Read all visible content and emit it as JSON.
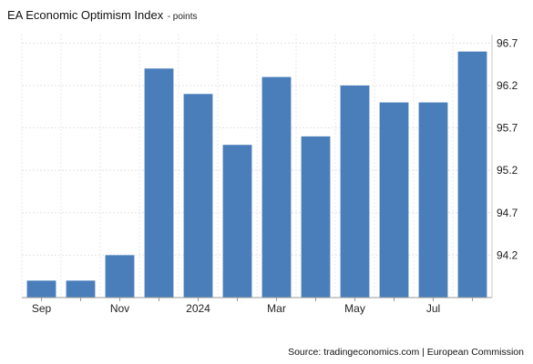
{
  "chart_data": {
    "type": "bar",
    "title": "EA Economic Optimism Index",
    "subtitle": "- points",
    "categories": [
      "Sep",
      "",
      "Nov",
      "",
      "2024",
      "",
      "Mar",
      "",
      "May",
      "",
      "Jul",
      ""
    ],
    "values": [
      93.9,
      93.9,
      94.2,
      96.4,
      96.1,
      95.5,
      96.3,
      95.6,
      96.2,
      96.0,
      96.0,
      96.6
    ],
    "y_ticks": [
      "94.2",
      "94.7",
      "95.2",
      "95.7",
      "96.2",
      "96.7"
    ],
    "ylim": [
      93.7,
      96.8
    ],
    "y_axis_position": "right",
    "grid": true,
    "bar_color": "#4a7ebb",
    "source": "Source: tradingeconomics.com | European Commission"
  }
}
